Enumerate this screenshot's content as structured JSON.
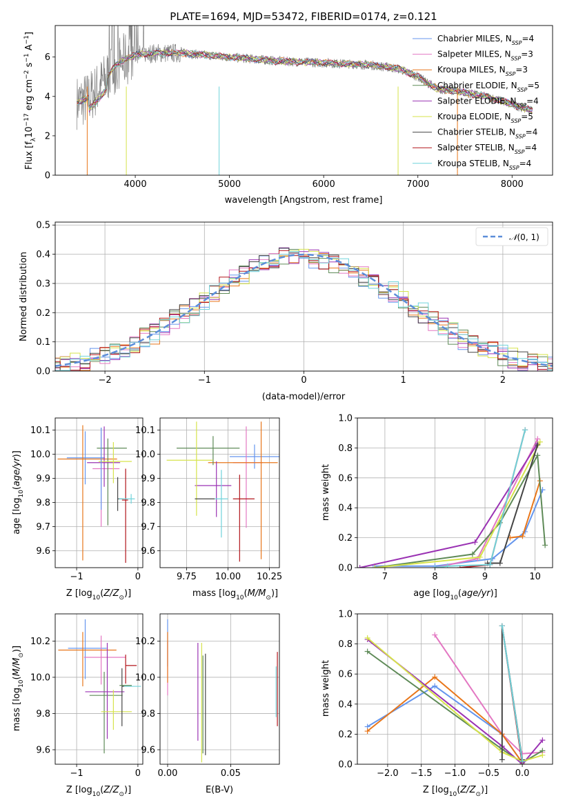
{
  "colors": {
    "Chabrier MILES": "#6495ED",
    "Salpeter MILES": "#E377C2",
    "Kroupa MILES": "#E8761A",
    "Chabrier ELODIE": "#5E8A57",
    "Salpeter ELODIE": "#9A32B3",
    "Kroupa ELODIE": "#D6E34A",
    "Chabrier STELIB": "#444444",
    "Salpeter STELIB": "#B2141A",
    "Kroupa STELIB": "#6FD3DA"
  },
  "chart_data": [
    {
      "id": "spectrum",
      "type": "line",
      "title": "PLATE=1694, MJD=53472, FIBERID=0174, z=0.121",
      "xlabel": "wavelength [Angstrom, rest frame]",
      "ylabel": "Flux [fλ10⁻¹⁷ erg cm⁻² s⁻¹ A⁻¹]",
      "xlim": [
        3150,
        8430
      ],
      "ylim": [
        0,
        7.6
      ],
      "xticks": [
        "4000",
        "5000",
        "6000",
        "7000",
        "8000"
      ],
      "yticks": [
        "0",
        "2",
        "4",
        "6"
      ],
      "continuum_x": [
        3380,
        3500,
        3600,
        3700,
        3800,
        3900,
        4000,
        4200,
        4500,
        5000,
        5500,
        6000,
        6500,
        6800,
        7000,
        7200,
        7500,
        7800,
        8000,
        8200
      ],
      "continuum_y": [
        3.7,
        3.9,
        4.4,
        5.0,
        5.6,
        5.9,
        6.1,
        6.2,
        6.2,
        6.0,
        5.8,
        5.7,
        5.6,
        5.4,
        5.0,
        4.4,
        4.2,
        3.9,
        3.6,
        3.3
      ],
      "legend": [
        {
          "name": "Chabrier MILES, N",
          "sub": "SSP",
          "suffix": "=4"
        },
        {
          "name": "Salpeter MILES, N",
          "sub": "SSP",
          "suffix": "=3"
        },
        {
          "name": "Kroupa MILES, N",
          "sub": "SSP",
          "suffix": "=3"
        },
        {
          "name": "Chabrier ELODIE, N",
          "sub": "SSP",
          "suffix": "=5"
        },
        {
          "name": "Salpeter ELODIE, N",
          "sub": "SSP",
          "suffix": "=4"
        },
        {
          "name": "Kroupa ELODIE, N",
          "sub": "SSP",
          "suffix": "=5"
        },
        {
          "name": "Chabrier STELIB, N",
          "sub": "SSP",
          "suffix": "=4"
        },
        {
          "name": "Salpeter STELIB, N",
          "sub": "SSP",
          "suffix": "=4"
        },
        {
          "name": "Kroupa STELIB, N",
          "sub": "SSP",
          "suffix": "=4"
        }
      ],
      "legend_position": "top-right"
    },
    {
      "id": "residuals",
      "type": "line",
      "xlabel": "(data-model)/error",
      "ylabel": "Normed distribution",
      "xlim": [
        -2.5,
        2.5
      ],
      "ylim": [
        0,
        0.51
      ],
      "xticks": [
        "−2",
        "−1",
        "0",
        "1",
        "2"
      ],
      "yticks": [
        "0.0",
        "0.1",
        "0.2",
        "0.3",
        "0.4",
        "0.5"
      ],
      "grid": true,
      "legend": [
        "𝒩(0, 1)"
      ],
      "legend_position": "top-right"
    },
    {
      "id": "age-vs-Z",
      "type": "scatter",
      "xlabel": "Z [log10(Z/Z⊙)]",
      "ylabel": "age [log10(age/yr)]",
      "xlim": [
        -1.35,
        0.08
      ],
      "ylim": [
        9.53,
        10.15
      ],
      "xticks": [
        "−1",
        "0"
      ],
      "yticks": [
        "9.6",
        "9.7",
        "9.8",
        "9.9",
        "10.0",
        "10.1"
      ],
      "grid": true,
      "points": [
        {
          "series": "Chabrier MILES",
          "x": -0.86,
          "y": 9.985,
          "xerr": [
            0.3,
            0.32
          ],
          "yerr": [
            0.11,
            0.11
          ]
        },
        {
          "series": "Salpeter MILES",
          "x": -0.6,
          "y": 9.94,
          "xerr": [
            0.14,
            0.3
          ],
          "yerr": [
            0.24,
            0.17
          ]
        },
        {
          "series": "Kroupa MILES",
          "x": -0.9,
          "y": 9.98,
          "xerr": [
            0.41,
            0.56
          ],
          "yerr": [
            0.42,
            0.14
          ]
        },
        {
          "series": "Chabrier ELODIE",
          "x": -0.49,
          "y": 10.025,
          "xerr": [
            0.18,
            0.31
          ],
          "yerr": [
            0.32,
            0.04
          ]
        },
        {
          "series": "Salpeter ELODIE",
          "x": -0.55,
          "y": 9.965,
          "xerr": [
            0.28,
            0.26
          ],
          "yerr": [
            0.1,
            0.15
          ]
        },
        {
          "series": "Kroupa ELODIE",
          "x": -0.4,
          "y": 9.97,
          "xerr": [
            0.24,
            0.3
          ],
          "yerr": [
            0.09,
            0.08
          ]
        },
        {
          "series": "Chabrier STELIB",
          "x": -0.33,
          "y": 9.815,
          "xerr": [
            0.0,
            0.1
          ],
          "yerr": [
            0.05,
            0.09
          ]
        },
        {
          "series": "Salpeter STELIB",
          "x": -0.2,
          "y": 9.81,
          "xerr": [
            0.06,
            0.04
          ],
          "yerr": [
            0.26,
            0.13
          ]
        },
        {
          "series": "Kroupa STELIB",
          "x": -0.11,
          "y": 9.815,
          "xerr": [
            0.2,
            0.06
          ],
          "yerr": [
            0.02,
            0.02
          ]
        },
        {
          "series": "Chabrier MILES",
          "x": -0.6,
          "y": 9.98,
          "xerr": [
            0.0,
            0.0
          ],
          "yerr": [
            0.21,
            0.13
          ]
        }
      ]
    },
    {
      "id": "age-vs-mass",
      "type": "scatter",
      "xlabel": "mass [log10(M/M⊙)]",
      "ylabel": "",
      "xlim": [
        9.59,
        10.31
      ],
      "ylim": [
        9.53,
        10.15
      ],
      "xticks": [
        "9.75",
        "10.00",
        "10.25"
      ],
      "yticks": [
        "9.6",
        "9.7",
        "9.8",
        "9.9",
        "10.0",
        "10.1"
      ],
      "grid": true,
      "points": [
        {
          "series": "Chabrier MILES",
          "x": 10.16,
          "y": 9.99,
          "xerr": [
            0.15,
            0.15
          ],
          "yerr": [
            0.05,
            0.05
          ]
        },
        {
          "series": "Salpeter MILES",
          "x": 10.11,
          "y": 9.965,
          "xerr": [
            0.08,
            0.1
          ],
          "yerr": [
            0.27,
            0.15
          ]
        },
        {
          "series": "Kroupa MILES",
          "x": 10.2,
          "y": 9.965,
          "xerr": [
            0.32,
            0.1
          ],
          "yerr": [
            0.4,
            0.17
          ]
        },
        {
          "series": "Chabrier ELODIE",
          "x": 9.91,
          "y": 10.025,
          "xerr": [
            0.22,
            0.16
          ],
          "yerr": [
            0.07,
            0.05
          ]
        },
        {
          "series": "Salpeter ELODIE",
          "x": 9.93,
          "y": 9.87,
          "xerr": [
            0.13,
            0.09
          ],
          "yerr": [
            0.13,
            0.1
          ]
        },
        {
          "series": "Kroupa ELODIE",
          "x": 9.81,
          "y": 9.975,
          "xerr": [
            0.18,
            0.1
          ],
          "yerr": [
            0.23,
            0.16
          ]
        },
        {
          "series": "Chabrier STELIB",
          "x": 9.9,
          "y": 9.815,
          "xerr": [
            0.1,
            0.02
          ],
          "yerr": [
            0.0,
            0.0
          ]
        },
        {
          "series": "Salpeter STELIB",
          "x": 10.07,
          "y": 9.815,
          "xerr": [
            0.04,
            0.09
          ],
          "yerr": [
            0.26,
            0.1
          ]
        },
        {
          "series": "Kroupa STELIB",
          "x": 9.96,
          "y": 9.815,
          "xerr": [
            0.04,
            0.04
          ],
          "yerr": [
            0.16,
            0.12
          ]
        }
      ]
    },
    {
      "id": "massweight-vs-age",
      "type": "line",
      "xlabel": "age [log10(age/yr)]",
      "ylabel": "mass weight",
      "xlim": [
        6.45,
        10.35
      ],
      "ylim": [
        0,
        1.0
      ],
      "xticks": [
        "7",
        "8",
        "9",
        "10"
      ],
      "yticks": [
        "0.0",
        "0.2",
        "0.4",
        "0.6",
        "0.8",
        "1.0"
      ],
      "grid": true,
      "series": [
        {
          "name": "Chabrier MILES",
          "x": [
            6.8,
            8.0,
            9.15,
            9.8,
            10.15
          ],
          "y": [
            0.01,
            0.01,
            0.06,
            0.24,
            0.52
          ]
        },
        {
          "name": "Salpeter MILES",
          "x": [
            8.0,
            8.85,
            10.05
          ],
          "y": [
            0.0,
            0.06,
            0.86
          ]
        },
        {
          "name": "Kroupa MILES",
          "x": [
            9.5,
            9.75,
            10.1
          ],
          "y": [
            0.2,
            0.21,
            0.58
          ]
        },
        {
          "name": "Chabrier ELODIE",
          "x": [
            6.8,
            8.75,
            9.3,
            10.05,
            10.2
          ],
          "y": [
            0.0,
            0.09,
            0.3,
            0.75,
            0.15
          ]
        },
        {
          "name": "Salpeter ELODIE",
          "x": [
            6.5,
            8.8,
            10.05
          ],
          "y": [
            0.0,
            0.17,
            0.83
          ]
        },
        {
          "name": "Kroupa ELODIE",
          "x": [
            6.8,
            8.9,
            10.1
          ],
          "y": [
            0.0,
            0.07,
            0.84
          ]
        },
        {
          "name": "Chabrier STELIB",
          "x": [
            9.05,
            9.3,
            10.05
          ],
          "y": [
            0.03,
            0.03,
            0.82
          ]
        },
        {
          "name": "Salpeter STELIB",
          "x": [
            8.5,
            9.1,
            9.8
          ],
          "y": [
            0.0,
            0.02,
            0.92
          ]
        },
        {
          "name": "Kroupa STELIB",
          "x": [
            8.0,
            8.25,
            9.1,
            9.8
          ],
          "y": [
            0.0,
            0.01,
            0.02,
            0.92
          ]
        }
      ]
    },
    {
      "id": "mass-vs-Z",
      "type": "scatter",
      "xlabel": "Z [log10(Z/Z⊙)]",
      "ylabel": "mass [log10(M/M⊙)]",
      "xlim": [
        -1.35,
        0.08
      ],
      "ylim": [
        9.52,
        10.35
      ],
      "xticks": [
        "−1",
        "0"
      ],
      "yticks": [
        "9.6",
        "9.8",
        "10.0",
        "10.2"
      ],
      "grid": true,
      "points": [
        {
          "series": "Chabrier MILES",
          "x": -0.86,
          "y": 10.16,
          "xerr": [
            0.28,
            0.35
          ],
          "yerr": [
            0.17,
            0.16
          ]
        },
        {
          "series": "Salpeter MILES",
          "x": -0.6,
          "y": 10.11,
          "xerr": [
            0.28,
            0.4
          ],
          "yerr": [
            0.15,
            0.12
          ]
        },
        {
          "series": "Kroupa MILES",
          "x": -0.9,
          "y": 10.15,
          "xerr": [
            0.4,
            0.55
          ],
          "yerr": [
            0.2,
            0.1
          ]
        },
        {
          "series": "Chabrier ELODIE",
          "x": -0.55,
          "y": 9.9,
          "xerr": [
            0.24,
            0.3
          ],
          "yerr": [
            0.32,
            0.13
          ]
        },
        {
          "series": "Salpeter ELODIE",
          "x": -0.5,
          "y": 9.92,
          "xerr": [
            0.36,
            0.28
          ],
          "yerr": [
            0.26,
            0.27
          ]
        },
        {
          "series": "Kroupa ELODIE",
          "x": -0.4,
          "y": 9.81,
          "xerr": [
            0.2,
            0.3
          ],
          "yerr": [
            0.1,
            0.12
          ]
        },
        {
          "series": "Chabrier STELIB",
          "x": -0.26,
          "y": 9.95,
          "xerr": [
            0.0,
            0.04
          ],
          "yerr": [
            0.22,
            0.1
          ]
        },
        {
          "series": "Salpeter STELIB",
          "x": -0.2,
          "y": 10.065,
          "xerr": [
            0.0,
            0.18
          ],
          "yerr": [
            0.1,
            0.06
          ]
        },
        {
          "series": "Kroupa STELIB",
          "x": -0.11,
          "y": 9.95,
          "xerr": [
            0.12,
            0.16
          ],
          "yerr": [
            0.0,
            0.0
          ]
        },
        {
          "series": "Chabrier ELODIE",
          "x": -0.25,
          "y": 9.955,
          "xerr": [
            0.05,
            0.15
          ],
          "yerr": [
            0.0,
            0.0
          ]
        }
      ]
    },
    {
      "id": "mass-vs-ebv",
      "type": "scatter",
      "xlabel": "E(B-V)",
      "ylabel": "",
      "xlim": [
        -0.006,
        0.0886
      ],
      "ylim": [
        9.52,
        10.35
      ],
      "xticks": [
        "0.00",
        "0.05"
      ],
      "yticks": [
        "9.6",
        "9.8",
        "10.0",
        "10.2"
      ],
      "grid": true,
      "points": [
        {
          "series": "Chabrier MILES",
          "x": 0.0,
          "y": 10.16,
          "xerr": [
            0,
            0
          ],
          "yerr": [
            0.1,
            0.16
          ]
        },
        {
          "series": "Salpeter MILES",
          "x": 0.0,
          "y": 10.1,
          "xerr": [
            0,
            0
          ],
          "yerr": [
            0.2,
            0.1
          ]
        },
        {
          "series": "Kroupa MILES",
          "x": 0.0,
          "y": 10.15,
          "xerr": [
            0,
            0
          ],
          "yerr": [
            0.18,
            0.1
          ]
        },
        {
          "series": "Salpeter ELODIE",
          "x": 0.024,
          "y": 9.92,
          "xerr": [
            0,
            0
          ],
          "yerr": [
            0.27,
            0.27
          ]
        },
        {
          "series": "Kroupa ELODIE",
          "x": 0.027,
          "y": 9.81,
          "xerr": [
            0,
            0
          ],
          "yerr": [
            0.28,
            0.38
          ]
        },
        {
          "series": "Chabrier ELODIE",
          "x": 0.028,
          "y": 9.9,
          "xerr": [
            0,
            0
          ],
          "yerr": [
            0.32,
            0.22
          ]
        },
        {
          "series": "Chabrier STELIB",
          "x": 0.03,
          "y": 9.9,
          "xerr": [
            0,
            0
          ],
          "yerr": [
            0.33,
            0.23
          ]
        },
        {
          "series": "Salpeter STELIB",
          "x": 0.087,
          "y": 9.95,
          "xerr": [
            0,
            0
          ],
          "yerr": [
            0.22,
            0.19
          ]
        },
        {
          "series": "Kroupa STELIB",
          "x": 0.086,
          "y": 9.88,
          "xerr": [
            0,
            0
          ],
          "yerr": [
            0.1,
            0.18
          ]
        }
      ]
    },
    {
      "id": "massweight-vs-Z",
      "type": "line",
      "xlabel": "Z [log10(Z/Z⊙)]",
      "ylabel": "mass weight",
      "xlim": [
        -2.45,
        0.45
      ],
      "ylim": [
        0,
        1.0
      ],
      "xticks": [
        "−2.0",
        "−1.5",
        "−1.0",
        "−0.5",
        "0.0"
      ],
      "yticks": [
        "0.0",
        "0.2",
        "0.4",
        "0.6",
        "0.8",
        "1.0"
      ],
      "grid": true,
      "series": [
        {
          "name": "Chabrier MILES",
          "x": [
            -2.3,
            -1.3,
            -0.3,
            0.0
          ],
          "y": [
            0.25,
            0.52,
            0.2,
            0.01
          ]
        },
        {
          "name": "Salpeter MILES",
          "x": [
            -1.3,
            -0.3,
            0.0,
            0.3
          ],
          "y": [
            0.86,
            0.2,
            0.07,
            0.08
          ]
        },
        {
          "name": "Kroupa MILES",
          "x": [
            -2.3,
            -1.3,
            -0.3,
            0.0
          ],
          "y": [
            0.22,
            0.58,
            0.2,
            0.01
          ]
        },
        {
          "name": "Chabrier ELODIE",
          "x": [
            -2.3,
            -0.3,
            0.0,
            0.3
          ],
          "y": [
            0.75,
            0.1,
            0.01,
            0.09
          ]
        },
        {
          "name": "Salpeter ELODIE",
          "x": [
            -2.3,
            -0.3,
            0.0,
            0.3
          ],
          "y": [
            0.83,
            0.12,
            0.0,
            0.16
          ]
        },
        {
          "name": "Kroupa ELODIE",
          "x": [
            -2.3,
            -0.3,
            0.0,
            0.3
          ],
          "y": [
            0.84,
            0.08,
            0.02,
            0.06
          ]
        },
        {
          "name": "Chabrier STELIB",
          "x": [
            -0.3,
            -0.3,
            0.0
          ],
          "y": [
            0.03,
            0.92,
            0.03
          ]
        },
        {
          "name": "Salpeter STELIB",
          "x": [
            -0.3,
            0.0
          ],
          "y": [
            0.92,
            0.0
          ]
        },
        {
          "name": "Kroupa STELIB",
          "x": [
            -0.3,
            0.0
          ],
          "y": [
            0.92,
            0.02
          ]
        }
      ]
    }
  ]
}
